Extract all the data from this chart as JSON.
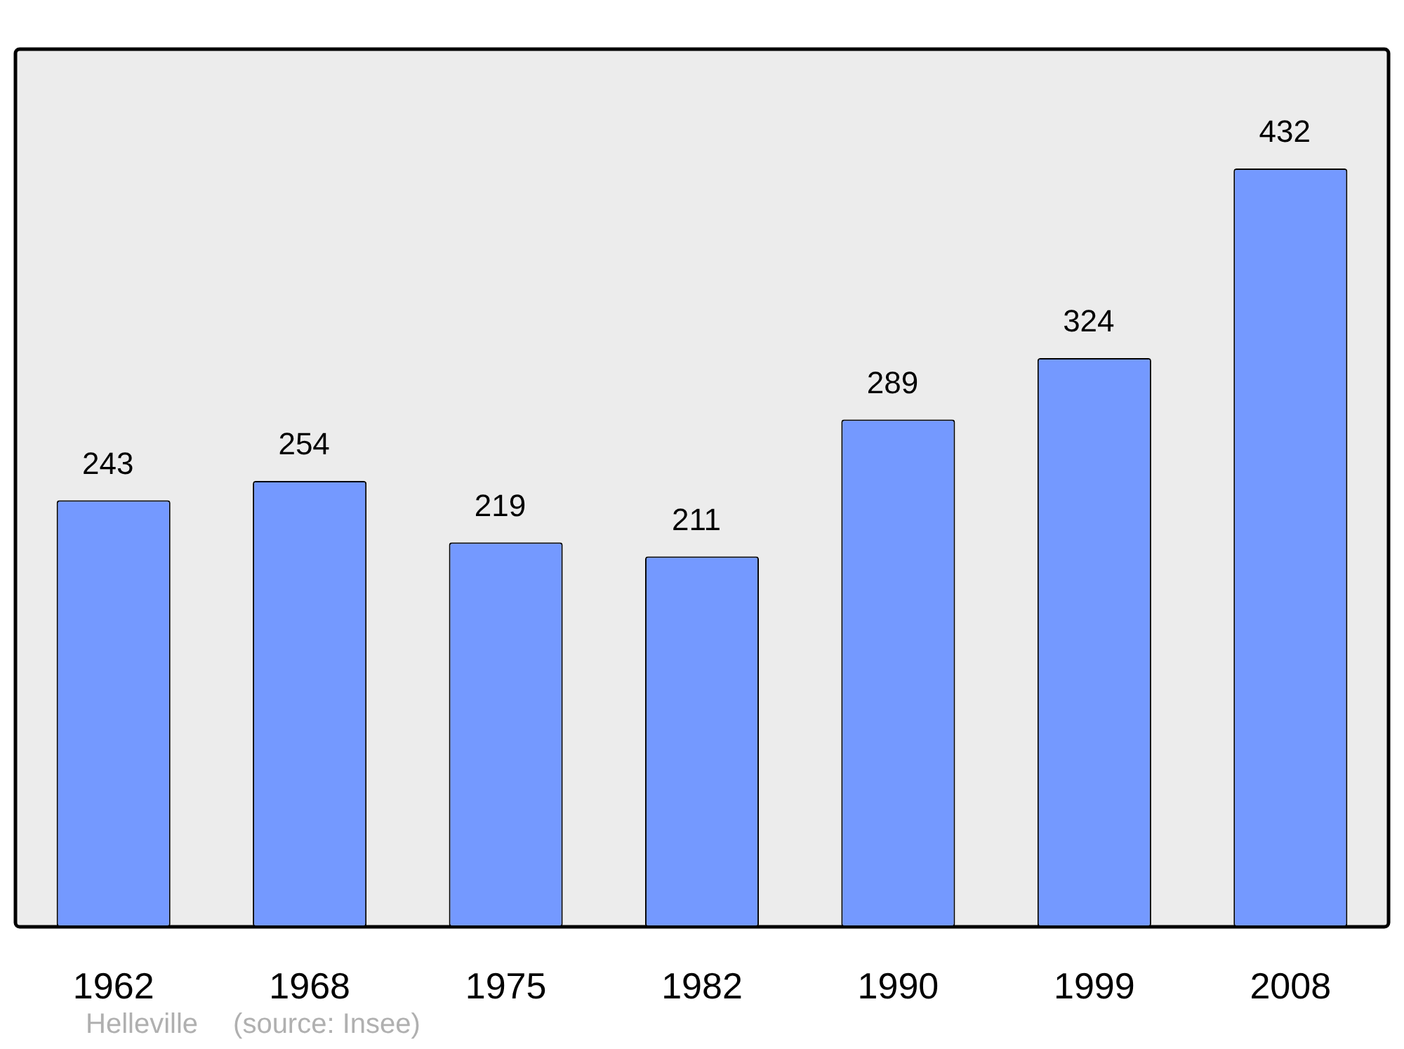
{
  "chart_data": {
    "type": "bar",
    "categories": [
      "1962",
      "1968",
      "1975",
      "1982",
      "1990",
      "1999",
      "2008"
    ],
    "values": [
      243,
      254,
      219,
      211,
      289,
      324,
      432
    ],
    "color": "#7499ff",
    "data_labels": true,
    "grid": false,
    "legend": false,
    "annotations": [
      "Helleville",
      "(source: Insee)"
    ]
  }
}
